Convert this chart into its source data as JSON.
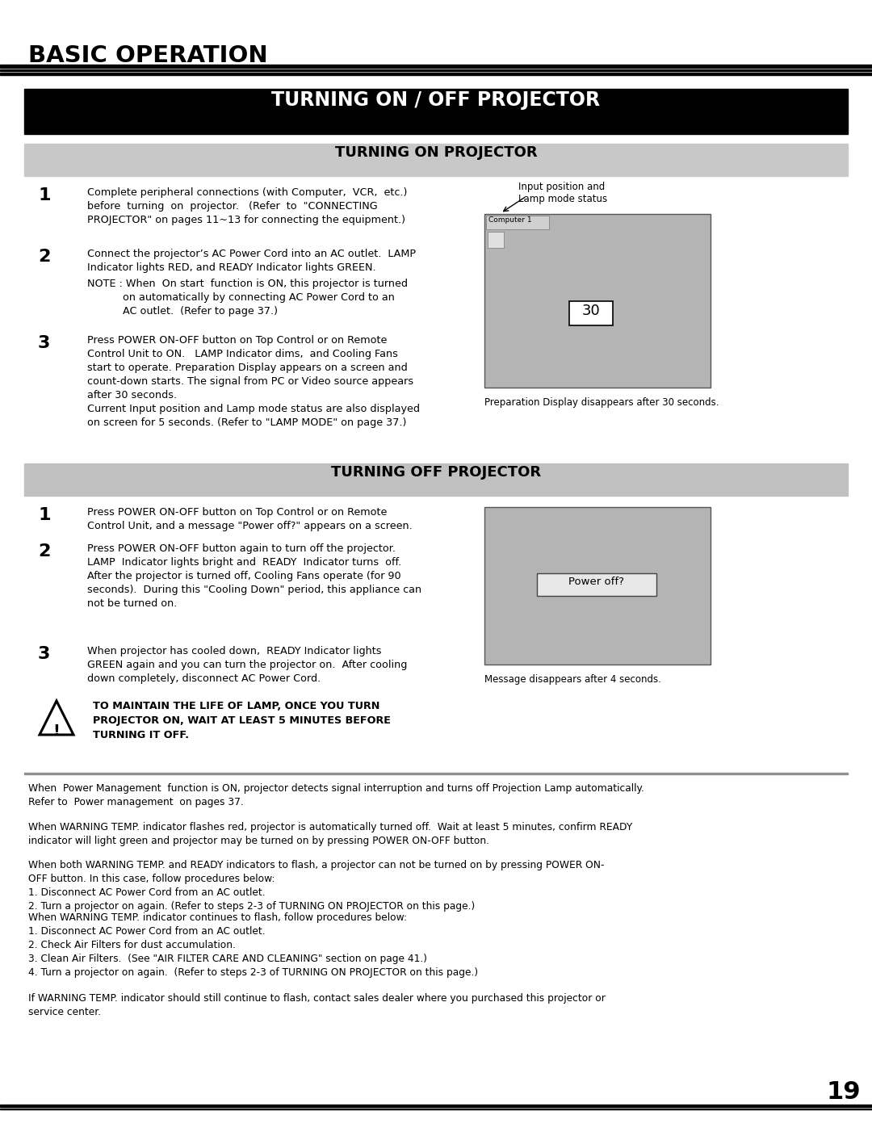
{
  "page_bg": "#ffffff",
  "title_main": "BASIC OPERATION",
  "section1_title": "TURNING ON / OFF PROJECTOR",
  "section2_title": "TURNING ON PROJECTOR",
  "section3_title": "TURNING OFF PROJECTOR",
  "on_step1": "Complete peripheral connections (with Computer,  VCR,  etc.)\nbefore  turning  on  projector.   (Refer  to  \"CONNECTING\nPROJECTOR\" on pages 11~13 for connecting the equipment.)",
  "on_step2_a": "Connect the projector’s AC Power Cord into an AC outlet.  LAMP\nIndicator lights RED, and READY Indicator lights GREEN.",
  "on_step2_note": "NOTE : When  On start  function is ON, this projector is turned\n           on automatically by connecting AC Power Cord to an\n           AC outlet.  (Refer to page 37.)",
  "on_step3": "Press POWER ON-OFF button on Top Control or on Remote\nControl Unit to ON.   LAMP Indicator dims,  and Cooling Fans\nstart to operate. Preparation Display appears on a screen and\ncount-down starts. The signal from PC or Video source appears\nafter 30 seconds.\nCurrent Input position and Lamp mode status are also displayed\non screen for 5 seconds. (Refer to \"LAMP MODE\" on page 37.)",
  "off_step1": "Press POWER ON-OFF button on Top Control or on Remote\nControl Unit, and a message \"Power off?\" appears on a screen.",
  "off_step2": "Press POWER ON-OFF button again to turn off the projector.\nLAMP  Indicator lights bright and  READY  Indicator turns  off.\nAfter the projector is turned off, Cooling Fans operate (for 90\nseconds).  During this \"Cooling Down\" period, this appliance can\nnot be turned on.",
  "off_step3": "When projector has cooled down,  READY Indicator lights\nGREEN again and you can turn the projector on.  After cooling\ndown completely, disconnect AC Power Cord.",
  "warning_text": "TO MAINTAIN THE LIFE OF LAMP, ONCE YOU TURN\nPROJECTOR ON, WAIT AT LEAST 5 MINUTES BEFORE\nTURNING IT OFF.",
  "diagram1_label": "Input position and\nLamp mode status",
  "diagram1_sub": "Computer 1",
  "diagram1_num": "30",
  "diagram1_caption": "Preparation Display disappears after 30 seconds.",
  "poweroff_text": "Power off?",
  "diagram2_caption": "Message disappears after 4 seconds.",
  "footer1": "When  Power Management  function is ON, projector detects signal interruption and turns off Projection Lamp automatically.\nRefer to  Power management  on pages 37.",
  "footer2": "When WARNING TEMP. indicator flashes red, projector is automatically turned off.  Wait at least 5 minutes, confirm READY\nindicator will light green and projector may be turned on by pressing POWER ON-OFF button.",
  "footer3": "When both WARNING TEMP. and READY indicators to flash, a projector can not be turned on by pressing POWER ON-\nOFF button. In this case, follow procedures below:\n1. Disconnect AC Power Cord from an AC outlet.\n2. Turn a projector on again. (Refer to steps 2-3 of TURNING ON PROJECTOR on this page.)",
  "footer4": "When WARNING TEMP. indicator continues to flash, follow procedures below:\n1. Disconnect AC Power Cord from an AC outlet.\n2. Check Air Filters for dust accumulation.\n3. Clean Air Filters.  (See \"AIR FILTER CARE AND CLEANING\" section on page 41.)\n4. Turn a projector on again.  (Refer to steps 2-3 of TURNING ON PROJECTOR on this page.)",
  "footer5": "If WARNING TEMP. indicator should still continue to flash, contact sales dealer where you purchased this projector or\nservice center.",
  "page_number": "19"
}
